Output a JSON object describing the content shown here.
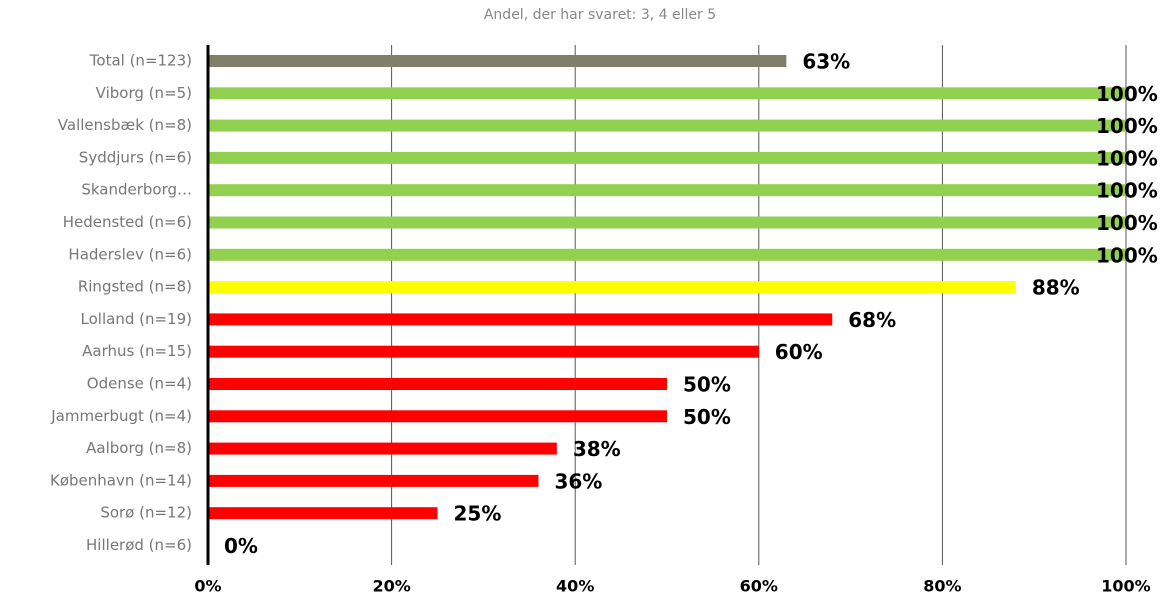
{
  "chart_data": {
    "type": "bar",
    "orientation": "horizontal",
    "title": "Andel, der har svaret: 3, 4 eller 5",
    "categories": [
      "Total (n=123)",
      "Viborg (n=5)",
      "Vallensbæk (n=8)",
      "Syddjurs (n=6)",
      "Skanderborg…",
      "Hedensted (n=6)",
      "Haderslev (n=6)",
      "Ringsted (n=8)",
      "Lolland (n=19)",
      "Aarhus (n=15)",
      "Odense (n=4)",
      "Jammerbugt (n=4)",
      "Aalborg (n=8)",
      "København (n=14)",
      "Sorø (n=12)",
      "Hillerød (n=6)"
    ],
    "values": [
      63,
      100,
      100,
      100,
      100,
      100,
      100,
      88,
      68,
      60,
      50,
      50,
      38,
      36,
      25,
      0
    ],
    "value_labels": [
      "63%",
      "100%",
      "100%",
      "100%",
      "100%",
      "100%",
      "100%",
      "88%",
      "68%",
      "60%",
      "50%",
      "50%",
      "38%",
      "36%",
      "25%",
      "0%"
    ],
    "colors": [
      "#7f7f6a",
      "#92d050",
      "#92d050",
      "#92d050",
      "#92d050",
      "#92d050",
      "#92d050",
      "#ffff00",
      "#ff0000",
      "#ff0000",
      "#ff0000",
      "#ff0000",
      "#ff0000",
      "#ff0000",
      "#ff0000",
      "#ff0000"
    ],
    "xlim": [
      0,
      100
    ],
    "xticks": [
      {
        "value": 0,
        "label": "0%"
      },
      {
        "value": 20,
        "label": "20%"
      },
      {
        "value": 40,
        "label": "40%"
      },
      {
        "value": 60,
        "label": "60%"
      },
      {
        "value": 80,
        "label": "80%"
      },
      {
        "value": 100,
        "label": "100%"
      }
    ],
    "grid": true
  }
}
